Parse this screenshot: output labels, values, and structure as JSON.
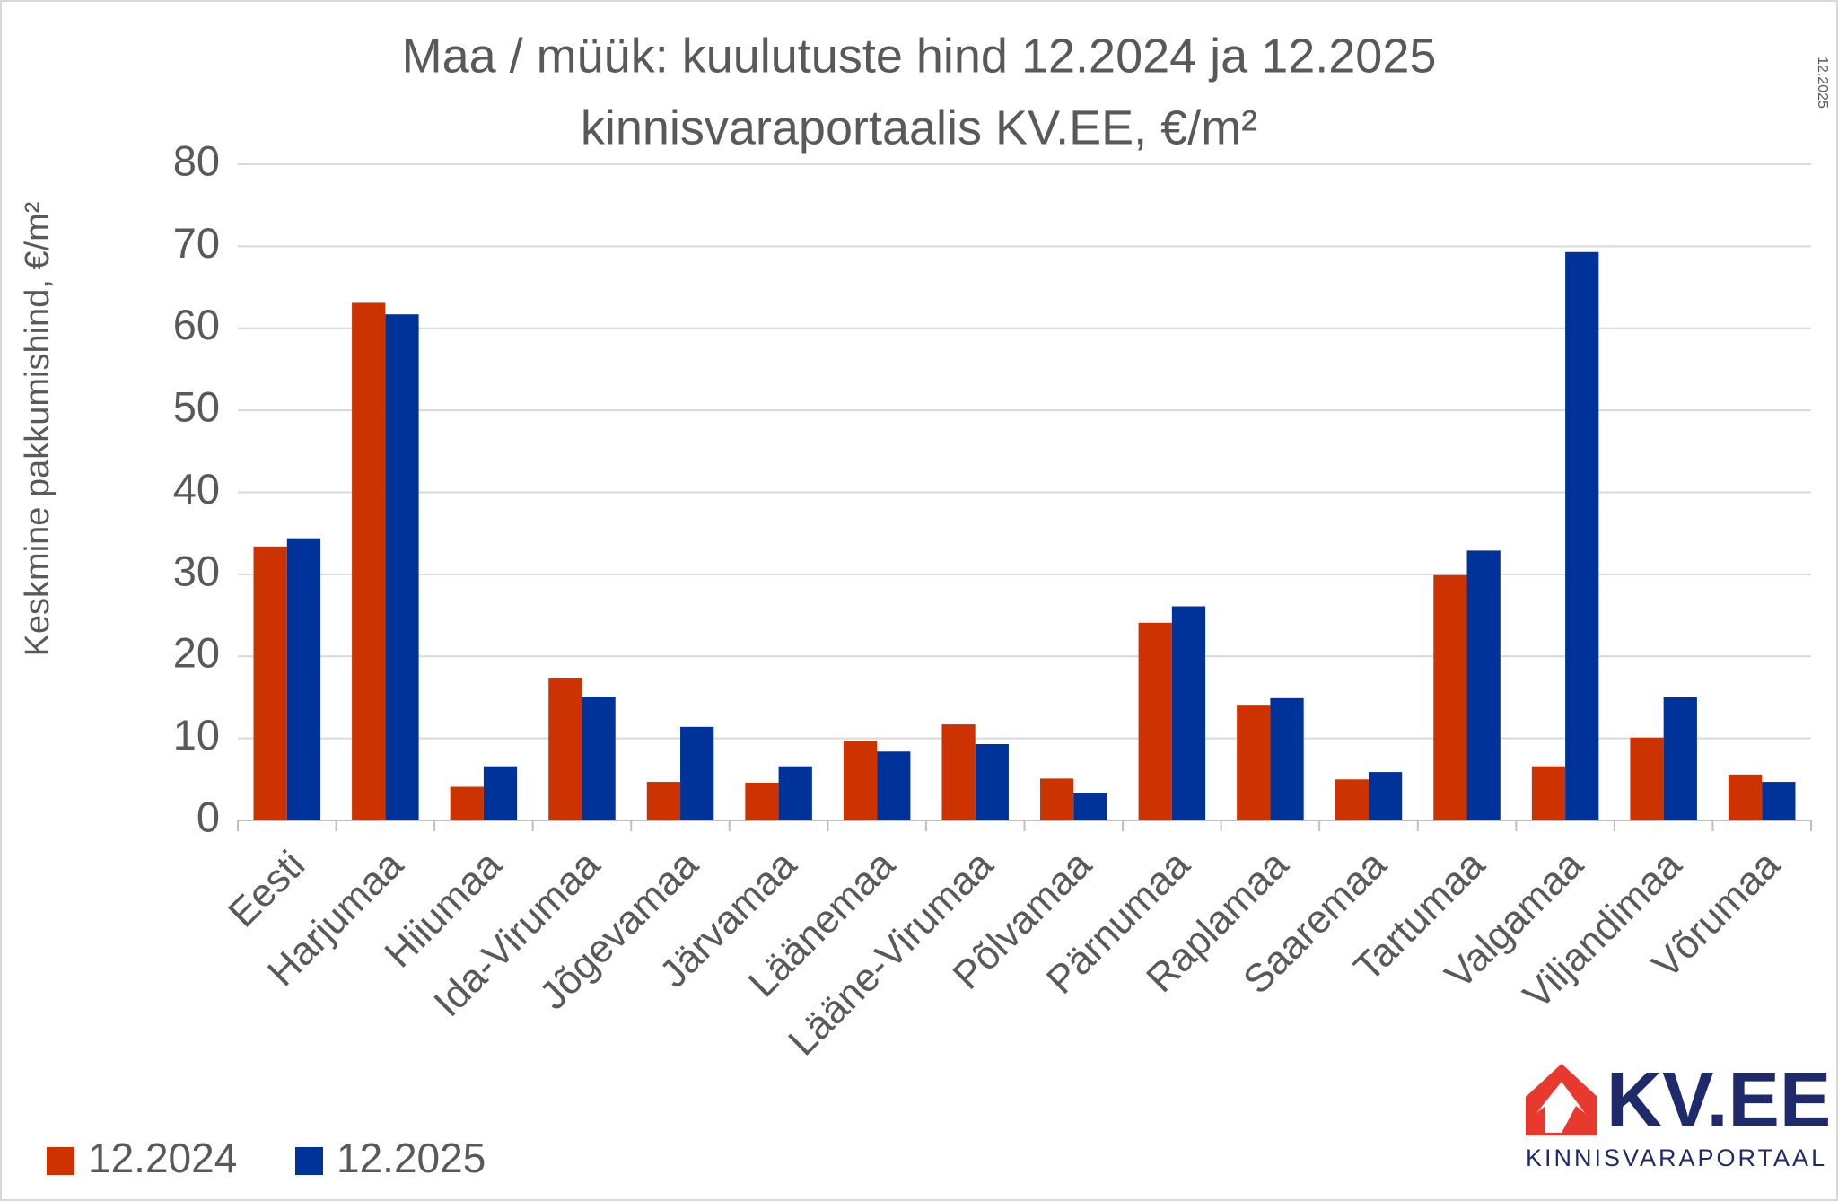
{
  "chart_data": {
    "type": "bar",
    "title": "Maa / müük: kuulutuste hind 12.2024 ja 12.2025",
    "subtitle": "kinnisvaraportaalis KV.EE, €/m²",
    "y_label": "Keskmine pakkumishind, €/m²",
    "date_note": "12.2025",
    "logo": {
      "name": "KV.EE",
      "tagline": "KINNISVARAPORTAAL"
    },
    "categories": [
      "Eesti",
      "Harjumaa",
      "Hiiumaa",
      "Ida-Virumaa",
      "Jõgevamaa",
      "Järvamaa",
      "Läänemaa",
      "Lääne-Virumaa",
      "Põlvamaa",
      "Pärnumaa",
      "Raplamaa",
      "Saaremaa",
      "Tartumaa",
      "Valgamaa",
      "Viljandimaa",
      "Võrumaa"
    ],
    "series": [
      {
        "name": "12.2024",
        "color": "#cc3300",
        "values": [
          33.4,
          63.1,
          4.1,
          17.4,
          4.7,
          4.6,
          9.7,
          11.7,
          5.1,
          24.1,
          14.1,
          5.0,
          29.9,
          6.6,
          10.1,
          5.6
        ]
      },
      {
        "name": "12.2025",
        "color": "#003399",
        "values": [
          34.4,
          61.7,
          6.6,
          15.1,
          11.4,
          6.6,
          8.4,
          9.3,
          3.3,
          26.1,
          14.9,
          5.9,
          32.9,
          69.3,
          15.0,
          4.7
        ]
      }
    ],
    "ylim": [
      0,
      80
    ],
    "yticks": [
      0,
      10,
      20,
      30,
      40,
      50,
      60,
      70,
      80
    ],
    "grid": true,
    "legend": "bottom-left"
  }
}
